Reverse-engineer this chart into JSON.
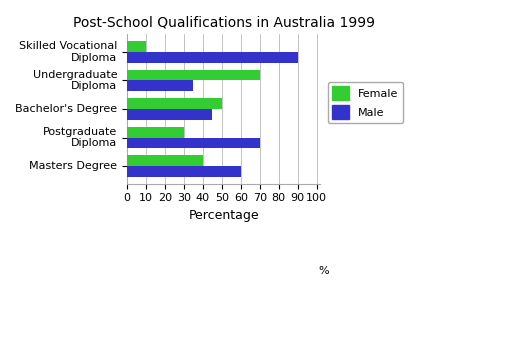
{
  "title": "Post-School Qualifications in Australia 1999",
  "categories": [
    "Skilled Vocational\nDiploma",
    "Undergraduate\nDiploma",
    "Bachelor's Degree",
    "Postgraduate\nDiploma",
    "Masters Degree"
  ],
  "female_values": [
    10,
    70,
    50,
    30,
    40
  ],
  "male_values": [
    90,
    35,
    45,
    70,
    60
  ],
  "female_color": "#33cc33",
  "male_color": "#3333cc",
  "xlabel": "Percentage",
  "xlim": [
    0,
    100
  ],
  "xticks": [
    0,
    10,
    20,
    30,
    40,
    50,
    60,
    70,
    80,
    90,
    100
  ],
  "xtick_labels": [
    "0",
    "10",
    "20",
    "30",
    "40",
    "50",
    "60",
    "70",
    "80",
    "90",
    "100"
  ],
  "bar_height": 0.38,
  "background_color": "#ffffff",
  "legend_labels": [
    "Female",
    "Male"
  ],
  "title_fontsize": 10,
  "axis_fontsize": 9,
  "tick_fontsize": 8,
  "grid_color": "#aaaaaa",
  "percent_label": "%"
}
